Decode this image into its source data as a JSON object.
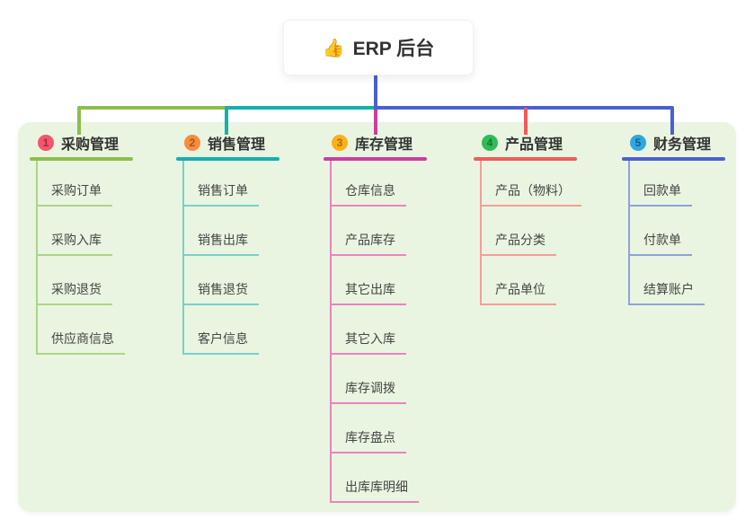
{
  "root": {
    "icon": "👍",
    "title": "ERP 后台"
  },
  "colors": {
    "panel_bg": "#e9f5e0",
    "trunk_blue": "#4a60d1"
  },
  "branches": [
    {
      "number": "1",
      "title": "采购管理",
      "color": "#8cbe4f",
      "child_color": "#add487",
      "badge_bg": "#f3566d",
      "badge_fg": "#9e2c41",
      "children": [
        "采购订单",
        "采购入库",
        "采购退货",
        "供应商信息"
      ]
    },
    {
      "number": "2",
      "title": "销售管理",
      "color": "#14b1aa",
      "child_color": "#79d0cb",
      "badge_bg": "#f78c3e",
      "badge_fg": "#a85812",
      "children": [
        "销售订单",
        "销售出库",
        "销售退货",
        "客户信息"
      ]
    },
    {
      "number": "3",
      "title": "库存管理",
      "color": "#ce3d9c",
      "child_color": "#ea83c0",
      "badge_bg": "#fcaf1b",
      "badge_fg": "#a87107",
      "children": [
        "仓库信息",
        "产品库存",
        "其它出库",
        "其它入库",
        "库存调拨",
        "库存盘点",
        "出库库明细"
      ]
    },
    {
      "number": "4",
      "title": "产品管理",
      "color": "#f15b5b",
      "child_color": "#f79d96",
      "badge_bg": "#2fbc56",
      "badge_fg": "#147833",
      "children": [
        "产品（物料）",
        "产品分类",
        "产品单位"
      ]
    },
    {
      "number": "5",
      "title": "财务管理",
      "color": "#4a60d1",
      "child_color": "#8ea2dd",
      "badge_bg": "#30a8df",
      "badge_fg": "#0f5e93",
      "children": [
        "回款单",
        "付款单",
        "结算账户"
      ]
    }
  ]
}
